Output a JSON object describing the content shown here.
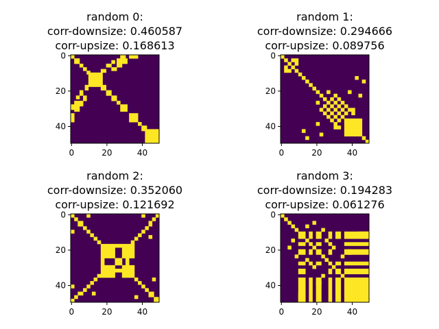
{
  "colors": {
    "low": "#440154",
    "high": "#fde725",
    "axis": "#000000"
  },
  "chart_data": [
    {
      "type": "heatmap",
      "title": [
        "random 0:",
        "corr-downsize: 0.460587",
        "corr-upsize: 0.168613"
      ],
      "grid_size": 50,
      "xticks": [
        0,
        20,
        40
      ],
      "yticks": [
        0,
        20,
        40
      ],
      "xlim": [
        -0.5,
        49.5
      ],
      "ylim": [
        49.5,
        -0.5
      ],
      "blocks": [
        [
          0,
          1,
          0,
          1
        ],
        [
          48,
          49,
          48,
          49
        ],
        [
          2,
          4,
          2,
          4
        ],
        [
          5,
          6,
          5,
          6
        ],
        [
          7,
          8,
          7,
          8
        ],
        [
          9,
          10,
          9,
          10
        ],
        [
          10,
          17,
          10,
          17
        ],
        [
          17,
          19,
          17,
          19
        ],
        [
          20,
          22,
          20,
          22
        ],
        [
          23,
          25,
          23,
          25
        ],
        [
          26,
          27,
          26,
          27
        ],
        [
          28,
          31,
          28,
          31
        ],
        [
          33,
          37,
          33,
          37
        ],
        [
          38,
          39,
          38,
          39
        ],
        [
          40,
          42,
          40,
          42
        ],
        [
          42,
          45,
          42,
          45
        ],
        [
          46,
          49,
          42,
          45
        ],
        [
          42,
          45,
          46,
          49
        ],
        [
          46,
          49,
          46,
          49
        ],
        [
          2,
          4,
          29,
          31
        ],
        [
          29,
          31,
          2,
          4
        ],
        [
          5,
          6,
          26,
          28
        ],
        [
          26,
          28,
          5,
          6
        ],
        [
          7,
          8,
          23,
          25
        ],
        [
          23,
          25,
          7,
          8
        ],
        [
          17,
          19,
          8,
          9
        ],
        [
          8,
          9,
          17,
          19
        ],
        [
          20,
          22,
          5,
          6
        ],
        [
          5,
          6,
          20,
          22
        ],
        [
          23,
          24,
          3,
          4
        ],
        [
          3,
          4,
          23,
          24
        ],
        [
          26,
          28,
          2,
          4
        ],
        [
          2,
          4,
          26,
          28
        ],
        [
          28,
          30,
          0,
          1
        ],
        [
          0,
          1,
          28,
          30
        ],
        [
          33,
          37,
          0,
          1
        ],
        [
          0,
          1,
          33,
          37
        ]
      ]
    },
    {
      "type": "heatmap",
      "title": [
        "random 1:",
        "corr-downsize: 0.294666",
        "corr-upsize: 0.089756"
      ],
      "grid_size": 50,
      "xticks": [
        0,
        20,
        40
      ],
      "yticks": [
        0,
        20,
        40
      ],
      "xlim": [
        -0.5,
        49.5
      ],
      "ylim": [
        49.5,
        -0.5
      ],
      "blocks": [
        [
          0,
          1,
          0,
          1
        ],
        [
          2,
          3,
          2,
          3
        ],
        [
          4,
          5,
          4,
          5
        ],
        [
          6,
          7,
          6,
          7
        ],
        [
          8,
          9,
          8,
          9
        ],
        [
          2,
          3,
          6,
          7
        ],
        [
          6,
          7,
          2,
          3
        ],
        [
          4,
          5,
          8,
          9
        ],
        [
          8,
          9,
          4,
          5
        ],
        [
          2,
          3,
          8,
          9
        ],
        [
          8,
          9,
          2,
          3
        ],
        [
          10,
          11,
          10,
          11
        ],
        [
          12,
          13,
          12,
          13
        ],
        [
          14,
          15,
          14,
          15
        ],
        [
          16,
          17,
          16,
          17
        ],
        [
          18,
          19,
          18,
          19
        ],
        [
          20,
          21,
          20,
          21
        ],
        [
          22,
          23,
          22,
          23
        ],
        [
          24,
          25,
          24,
          25
        ],
        [
          26,
          27,
          26,
          27
        ],
        [
          28,
          29,
          28,
          29
        ],
        [
          30,
          31,
          30,
          31
        ],
        [
          32,
          33,
          32,
          33
        ],
        [
          34,
          35,
          34,
          35
        ],
        [
          36,
          37,
          36,
          37
        ],
        [
          38,
          39,
          38,
          39
        ],
        [
          40,
          41,
          40,
          41
        ],
        [
          42,
          43,
          42,
          43
        ],
        [
          44,
          45,
          44,
          45
        ],
        [
          46,
          47,
          46,
          47
        ],
        [
          48,
          49,
          48,
          49
        ],
        [
          24,
          25,
          28,
          29
        ],
        [
          28,
          29,
          24,
          25
        ],
        [
          24,
          25,
          32,
          33
        ],
        [
          32,
          33,
          24,
          25
        ],
        [
          26,
          27,
          30,
          31
        ],
        [
          30,
          31,
          26,
          27
        ],
        [
          26,
          27,
          34,
          35
        ],
        [
          34,
          35,
          26,
          27
        ],
        [
          28,
          29,
          32,
          33
        ],
        [
          32,
          33,
          28,
          29
        ],
        [
          28,
          29,
          36,
          37
        ],
        [
          36,
          37,
          28,
          29
        ],
        [
          30,
          31,
          34,
          35
        ],
        [
          34,
          35,
          30,
          31
        ],
        [
          30,
          31,
          38,
          41
        ],
        [
          38,
          41,
          30,
          31
        ],
        [
          32,
          33,
          36,
          37
        ],
        [
          36,
          37,
          32,
          33
        ],
        [
          20,
          21,
          26,
          27
        ],
        [
          26,
          27,
          20,
          21
        ],
        [
          22,
          23,
          30,
          31
        ],
        [
          30,
          31,
          22,
          23
        ],
        [
          20,
          21,
          38,
          39
        ],
        [
          38,
          39,
          20,
          21
        ],
        [
          36,
          43,
          36,
          43
        ],
        [
          36,
          43,
          44,
          45
        ],
        [
          44,
          45,
          36,
          43
        ],
        [
          12,
          13,
          42,
          43
        ],
        [
          42,
          43,
          12,
          13
        ],
        [
          22,
          23,
          44,
          45
        ],
        [
          44,
          45,
          22,
          23
        ],
        [
          14,
          15,
          46,
          47
        ],
        [
          46,
          47,
          14,
          15
        ],
        [
          32,
          33,
          40,
          41
        ],
        [
          40,
          41,
          32,
          33
        ]
      ]
    },
    {
      "type": "heatmap",
      "title": [
        "random 2:",
        "corr-downsize: 0.352060",
        "corr-upsize: 0.121692"
      ],
      "grid_size": 50,
      "xticks": [
        0,
        20,
        40
      ],
      "yticks": [
        0,
        20,
        40
      ],
      "xlim": [
        -0.5,
        49.5
      ],
      "ylim": [
        49.5,
        -0.5
      ],
      "blocks": [
        [
          0,
          1,
          0,
          1
        ],
        [
          2,
          3,
          2,
          3
        ],
        [
          4,
          6,
          4,
          6
        ],
        [
          7,
          8,
          7,
          8
        ],
        [
          9,
          10,
          9,
          10
        ],
        [
          11,
          12,
          11,
          12
        ],
        [
          13,
          14,
          13,
          14
        ],
        [
          15,
          16,
          15,
          16
        ],
        [
          17,
          24,
          17,
          24
        ],
        [
          25,
          26,
          25,
          26
        ],
        [
          27,
          28,
          27,
          28
        ],
        [
          29,
          35,
          29,
          35
        ],
        [
          36,
          37,
          36,
          37
        ],
        [
          38,
          39,
          38,
          39
        ],
        [
          40,
          41,
          40,
          41
        ],
        [
          42,
          43,
          42,
          43
        ],
        [
          44,
          46,
          44,
          46
        ],
        [
          47,
          49,
          47,
          49
        ],
        [
          0,
          1,
          48,
          49
        ],
        [
          48,
          49,
          0,
          1
        ],
        [
          2,
          3,
          46,
          47
        ],
        [
          46,
          47,
          2,
          3
        ],
        [
          4,
          6,
          44,
          45
        ],
        [
          44,
          45,
          4,
          6
        ],
        [
          7,
          8,
          42,
          43
        ],
        [
          42,
          43,
          7,
          8
        ],
        [
          9,
          10,
          40,
          41
        ],
        [
          40,
          41,
          9,
          10
        ],
        [
          11,
          12,
          38,
          39
        ],
        [
          38,
          39,
          11,
          12
        ],
        [
          13,
          14,
          36,
          37
        ],
        [
          36,
          37,
          13,
          14
        ],
        [
          15,
          16,
          34,
          35
        ],
        [
          34,
          35,
          15,
          16
        ],
        [
          17,
          24,
          29,
          35
        ],
        [
          29,
          35,
          17,
          24
        ],
        [
          25,
          26,
          27,
          28
        ],
        [
          27,
          28,
          25,
          26
        ],
        [
          17,
          18,
          25,
          28
        ],
        [
          25,
          28,
          17,
          18
        ],
        [
          31,
          32,
          25,
          28
        ],
        [
          25,
          28,
          31,
          32
        ],
        [
          0,
          1,
          9,
          10
        ],
        [
          9,
          10,
          0,
          1
        ],
        [
          46,
          47,
          36,
          37
        ],
        [
          36,
          37,
          46,
          47
        ],
        [
          0,
          1,
          40,
          41
        ],
        [
          40,
          41,
          0,
          1
        ],
        [
          44,
          45,
          12,
          13
        ],
        [
          12,
          13,
          44,
          45
        ]
      ]
    },
    {
      "type": "heatmap",
      "title": [
        "random 3:",
        "corr-downsize: 0.194283",
        "corr-upsize: 0.061276"
      ],
      "grid_size": 50,
      "xticks": [
        0,
        20,
        40
      ],
      "yticks": [
        0,
        20,
        40
      ],
      "xlim": [
        -0.5,
        49.5
      ],
      "ylim": [
        49.5,
        -0.5
      ],
      "blocks": [
        [
          0,
          1,
          0,
          1
        ],
        [
          2,
          3,
          2,
          3
        ],
        [
          4,
          5,
          4,
          5
        ],
        [
          6,
          7,
          6,
          7
        ],
        [
          8,
          9,
          8,
          9
        ],
        [
          10,
          13,
          10,
          13
        ],
        [
          14,
          15,
          14,
          15
        ],
        [
          16,
          17,
          16,
          17
        ],
        [
          18,
          19,
          18,
          19
        ],
        [
          20,
          22,
          20,
          22
        ],
        [
          23,
          24,
          23,
          24
        ],
        [
          25,
          26,
          25,
          26
        ],
        [
          27,
          28,
          27,
          28
        ],
        [
          29,
          30,
          29,
          30
        ],
        [
          31,
          33,
          31,
          33
        ],
        [
          34,
          35,
          34,
          35
        ],
        [
          36,
          49,
          36,
          49
        ],
        [
          10,
          13,
          16,
          17
        ],
        [
          16,
          17,
          10,
          13
        ],
        [
          10,
          13,
          20,
          22
        ],
        [
          20,
          22,
          10,
          13
        ],
        [
          10,
          13,
          27,
          28
        ],
        [
          27,
          28,
          10,
          13
        ],
        [
          10,
          13,
          31,
          33
        ],
        [
          31,
          33,
          10,
          13
        ],
        [
          10,
          13,
          36,
          49
        ],
        [
          36,
          49,
          10,
          13
        ],
        [
          16,
          17,
          20,
          22
        ],
        [
          20,
          22,
          16,
          17
        ],
        [
          16,
          17,
          27,
          28
        ],
        [
          27,
          28,
          16,
          17
        ],
        [
          16,
          17,
          36,
          49
        ],
        [
          36,
          49,
          16,
          17
        ],
        [
          20,
          22,
          27,
          28
        ],
        [
          27,
          28,
          20,
          22
        ],
        [
          20,
          22,
          36,
          49
        ],
        [
          36,
          49,
          20,
          22
        ],
        [
          27,
          28,
          31,
          33
        ],
        [
          31,
          33,
          27,
          28
        ],
        [
          27,
          28,
          36,
          49
        ],
        [
          36,
          49,
          27,
          28
        ],
        [
          31,
          33,
          36,
          49
        ],
        [
          36,
          49,
          31,
          33
        ],
        [
          6,
          7,
          14,
          15
        ],
        [
          14,
          15,
          6,
          7
        ],
        [
          8,
          9,
          23,
          24
        ],
        [
          23,
          24,
          8,
          9
        ],
        [
          14,
          15,
          25,
          26
        ],
        [
          25,
          26,
          14,
          15
        ],
        [
          23,
          24,
          34,
          35
        ],
        [
          34,
          35,
          23,
          24
        ],
        [
          4,
          5,
          18,
          19
        ],
        [
          18,
          19,
          4,
          5
        ],
        [
          29,
          30,
          18,
          19
        ],
        [
          18,
          19,
          29,
          30
        ],
        [
          20,
          22,
          38,
          39
        ],
        [
          38,
          39,
          20,
          22
        ],
        [
          10,
          13,
          44,
          49
        ],
        [
          44,
          49,
          10,
          13
        ]
      ]
    }
  ]
}
